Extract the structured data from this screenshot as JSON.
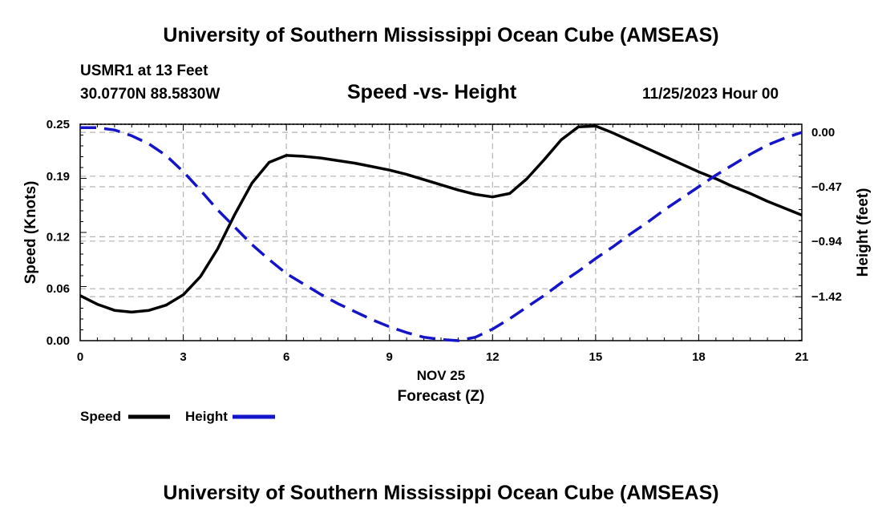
{
  "header": {
    "main_title": "University of Southern Mississippi Ocean Cube (AMSEAS)",
    "station": "USMR1 at 13 Feet",
    "coordinates": "30.0770N  88.5830W",
    "chart_title": "Speed -vs- Height",
    "datetime": "11/25/2023 Hour 00",
    "footer_title": "University of Southern Mississippi Ocean Cube (AMSEAS)"
  },
  "colors": {
    "speed": "#000000",
    "height": "#1414c8",
    "grid": "#b4b4b4"
  },
  "chart_data": {
    "type": "line",
    "title": "Speed -vs- Height",
    "xlabel_date": "NOV 25",
    "xlabel": "Forecast (Z)",
    "ylabel": "Speed (Knots)",
    "y2label": "Height (feet)",
    "xlim": [
      0,
      21
    ],
    "ylim": [
      0,
      0.25
    ],
    "y2lim": [
      -1.8,
      0.07
    ],
    "x_ticks": [
      "0",
      "3",
      "6",
      "9",
      "12",
      "15",
      "18",
      "21"
    ],
    "y_ticks": [
      "0.00",
      "0.06",
      "0.12",
      "0.19",
      "0.25"
    ],
    "y2_ticks": [
      "0.00",
      "-0.47",
      "-0.94",
      "-1.42"
    ],
    "series": [
      {
        "name": "Speed",
        "axis": "left",
        "x": [
          0,
          0.5,
          1,
          1.5,
          2,
          2.5,
          3,
          3.5,
          4,
          4.5,
          5,
          5.5,
          6,
          6.5,
          7,
          7.5,
          8,
          8.5,
          9,
          9.5,
          10,
          10.5,
          11,
          11.5,
          12,
          12.5,
          13,
          13.5,
          14,
          14.5,
          15,
          15.5,
          16,
          16.5,
          17,
          17.5,
          18,
          18.5,
          19,
          19.5,
          20,
          20.5,
          21
        ],
        "values": [
          0.052,
          0.042,
          0.035,
          0.033,
          0.035,
          0.041,
          0.053,
          0.074,
          0.106,
          0.146,
          0.182,
          0.206,
          0.214,
          0.213,
          0.211,
          0.208,
          0.205,
          0.201,
          0.197,
          0.192,
          0.186,
          0.18,
          0.174,
          0.169,
          0.166,
          0.17,
          0.187,
          0.209,
          0.232,
          0.247,
          0.248,
          0.24,
          0.231,
          0.222,
          0.213,
          0.204,
          0.195,
          0.187,
          0.178,
          0.17,
          0.161,
          0.153,
          0.145
        ]
      },
      {
        "name": "Height",
        "axis": "right",
        "x": [
          0,
          0.5,
          1,
          1.5,
          2,
          2.5,
          3,
          3.5,
          4,
          4.5,
          5,
          5.5,
          6,
          6.5,
          7,
          7.5,
          8,
          8.5,
          9,
          9.5,
          10,
          10.5,
          11,
          11.5,
          12,
          12.5,
          13,
          13.5,
          14,
          14.5,
          15,
          15.5,
          16,
          16.5,
          17,
          17.5,
          18,
          18.5,
          19,
          19.5,
          20,
          20.5,
          21
        ],
        "values": [
          0.04,
          0.04,
          0.02,
          -0.03,
          -0.1,
          -0.2,
          -0.34,
          -0.5,
          -0.67,
          -0.82,
          -0.97,
          -1.1,
          -1.22,
          -1.31,
          -1.4,
          -1.48,
          -1.55,
          -1.62,
          -1.68,
          -1.73,
          -1.77,
          -1.79,
          -1.8,
          -1.77,
          -1.7,
          -1.61,
          -1.51,
          -1.41,
          -1.3,
          -1.2,
          -1.09,
          -0.99,
          -0.88,
          -0.78,
          -0.67,
          -0.57,
          -0.47,
          -0.37,
          -0.28,
          -0.19,
          -0.11,
          -0.05,
          0.0
        ]
      }
    ],
    "legend": [
      {
        "label": "Speed",
        "color": "#000000",
        "style": "solid"
      },
      {
        "label": "Height",
        "color": "#1414c8",
        "style": "dashed"
      }
    ]
  }
}
